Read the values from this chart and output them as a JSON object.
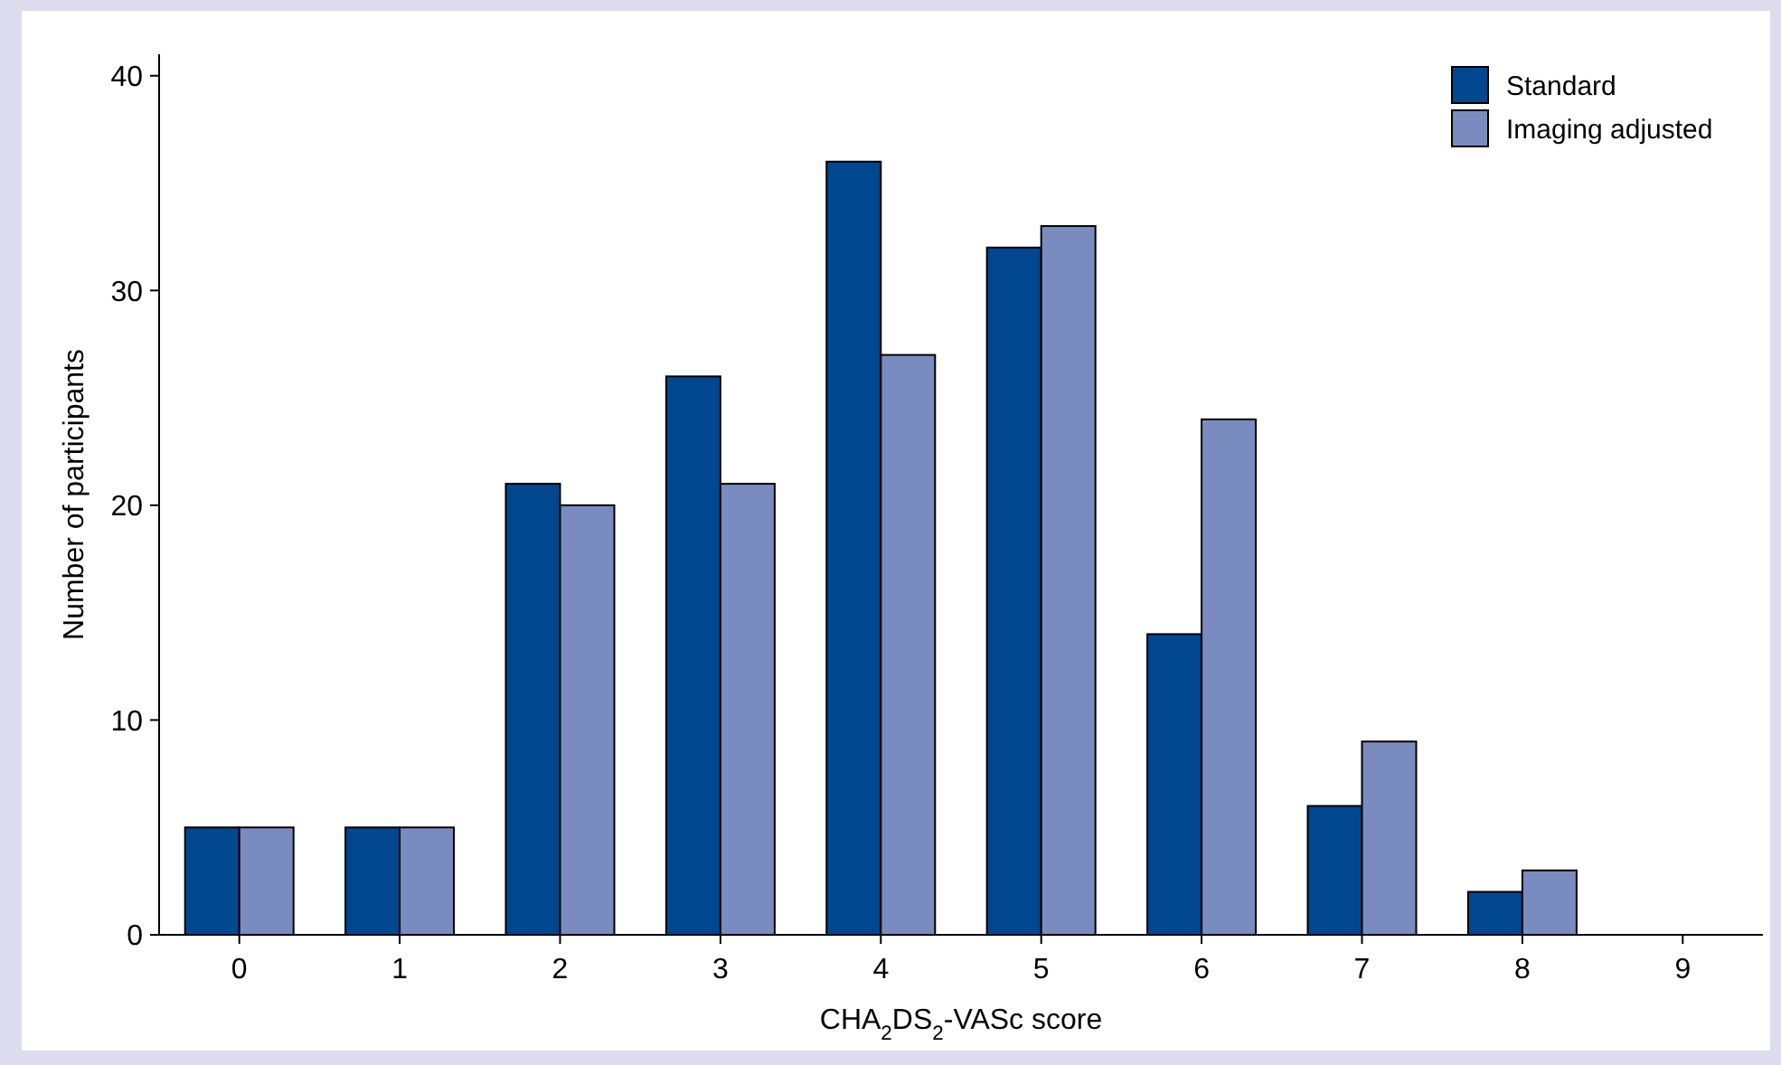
{
  "chart_data": {
    "type": "bar",
    "xlabel": "CHA$_{2}$DS$_{2}$-VASc score",
    "ylabel": "Number of participants",
    "categories": [
      "0",
      "1",
      "2",
      "3",
      "4",
      "5",
      "6",
      "7",
      "8",
      "9"
    ],
    "series": [
      {
        "name": "Standard",
        "color": "#00478f",
        "values": [
          5,
          5,
          21,
          26,
          36,
          32,
          14,
          6,
          2,
          0
        ]
      },
      {
        "name": "Imaging adjusted",
        "color": "#7a8bbf",
        "values": [
          5,
          5,
          20,
          21,
          27,
          33,
          24,
          9,
          3,
          0
        ]
      }
    ],
    "ylim": [
      0,
      41
    ],
    "yticks": [
      0,
      10,
      20,
      30,
      40
    ],
    "grid": false,
    "legend": "top right"
  }
}
